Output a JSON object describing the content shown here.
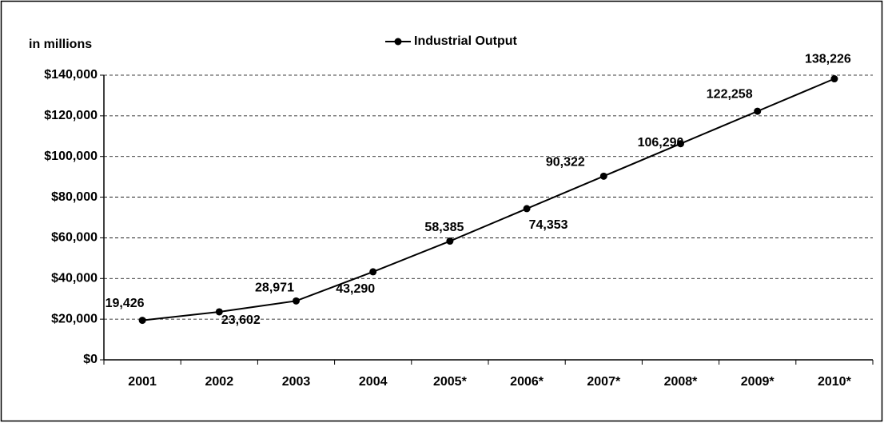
{
  "chart_data": {
    "type": "line",
    "y_axis_label": "in millions",
    "categories": [
      "2001",
      "2002",
      "2003",
      "2004",
      "2005*",
      "2006*",
      "2007*",
      "2008*",
      "2009*",
      "2010*"
    ],
    "series": [
      {
        "name": "Industrial Output",
        "color": "#000000",
        "values": [
          19426,
          23602,
          28971,
          43290,
          58385,
          74353,
          90322,
          106290,
          122258,
          138226
        ],
        "value_labels": [
          "19,426",
          "23,602",
          "28,971",
          "43,290",
          "58,385",
          "74,353",
          "90,322",
          "106,290",
          "122,258",
          "138,226"
        ]
      }
    ],
    "ylim": [
      0,
      140000
    ],
    "yticks": [
      {
        "value": 0,
        "label": "$0"
      },
      {
        "value": 20000,
        "label": "$20,000"
      },
      {
        "value": 40000,
        "label": "$40,000"
      },
      {
        "value": 60000,
        "label": "$60,000"
      },
      {
        "value": 80000,
        "label": "$80,000"
      },
      {
        "value": 100000,
        "label": "$100,000"
      },
      {
        "value": 120000,
        "label": "$120,000"
      },
      {
        "value": 140000,
        "label": "$140,000"
      }
    ],
    "grid": true,
    "legend": "top"
  }
}
